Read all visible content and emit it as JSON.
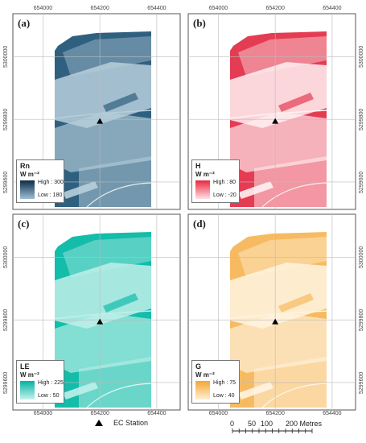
{
  "figure": {
    "x_ticks": [
      "654000",
      "654200",
      "654400"
    ],
    "y_ticks": [
      "5300000",
      "5299800",
      "5299600"
    ],
    "colors": {
      "Rn": "#3a6d8d",
      "H": "#ea4a5e",
      "LE": "#1ec2b2",
      "G": "#f2b256",
      "frame": "#555555"
    },
    "panels": [
      {
        "id": "a",
        "label": "(a)",
        "var": "Rn",
        "unit": "W m⁻²",
        "high": "High : 300",
        "low": "Low : 180",
        "ramp": [
          "#0c2c47",
          "#9ec0d6"
        ],
        "field": [
          "#2f607f",
          "#b7cfdc"
        ]
      },
      {
        "id": "b",
        "label": "(b)",
        "var": "H",
        "unit": "W m⁻²",
        "high": "High : 80",
        "low": "Low : -20",
        "ramp": [
          "#e8283e",
          "#ffe1e6"
        ],
        "field": [
          "#e43c53",
          "#fff1f3"
        ]
      },
      {
        "id": "c",
        "label": "(c)",
        "var": "LE",
        "unit": "W m⁻²",
        "high": "High : 225",
        "low": "Low : 50",
        "ramp": [
          "#00b3a2",
          "#c8f2ee"
        ],
        "field": [
          "#14bcaa",
          "#bff0ea"
        ]
      },
      {
        "id": "d",
        "label": "(d)",
        "var": "G",
        "unit": "W m⁻²",
        "high": "High : 75",
        "low": "Low : 40",
        "ramp": [
          "#f4a632",
          "#fff0d6"
        ],
        "field": [
          "#f6bb62",
          "#fff4e2"
        ]
      }
    ]
  },
  "station_legend": {
    "label": "EC Station"
  },
  "scalebar": {
    "labels": [
      "0",
      "50",
      "100",
      "200 Metres"
    ]
  }
}
